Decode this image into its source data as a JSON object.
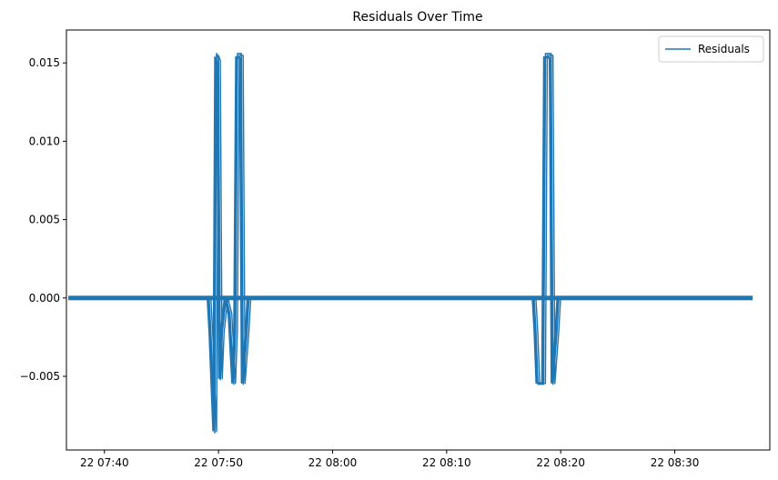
{
  "chart_data": {
    "type": "line",
    "title": "Residuals Over Time",
    "xlabel": "",
    "ylabel": "",
    "x_axis": {
      "kind": "time",
      "range": [
        "22 07:36:40",
        "22 08:38:20"
      ],
      "ticks": [
        "22 07:40",
        "22 07:50",
        "22 08:00",
        "22 08:10",
        "22 08:20",
        "22 08:30"
      ]
    },
    "y_axis": {
      "range": [
        -0.0097,
        0.0171
      ],
      "ticks": [
        "−0.005",
        "0.000",
        "0.005",
        "0.010",
        "0.015"
      ]
    },
    "grid": false,
    "legend": {
      "position": "top-right",
      "entries": [
        "Residuals"
      ]
    },
    "series": [
      {
        "name": "Residuals",
        "color": "#1f77b4",
        "time_range": [
          "22 07:36:50",
          "22 08:36:50"
        ],
        "baseline": 0.0,
        "points": [
          [
            "22 07:49:10",
            0.0
          ],
          [
            "22 07:49:20",
            -0.0023
          ],
          [
            "22 07:49:30",
            -0.0055
          ],
          [
            "22 07:49:40",
            -0.0086
          ],
          [
            "22 07:49:50",
            0.0156
          ],
          [
            "22 07:50:00",
            0.0153
          ],
          [
            "22 07:50:10",
            -0.0052
          ],
          [
            "22 07:50:20",
            -0.0022
          ],
          [
            "22 07:50:40",
            0.0
          ],
          [
            "22 07:51:00",
            -0.001
          ],
          [
            "22 07:51:20",
            -0.0055
          ],
          [
            "22 07:51:30",
            -0.0021
          ],
          [
            "22 07:51:40",
            0.0156
          ],
          [
            "22 07:52:00",
            0.0156
          ],
          [
            "22 07:52:10",
            -0.0055
          ],
          [
            "22 07:52:30",
            -0.0022
          ],
          [
            "22 07:52:40",
            0.0
          ],
          [
            "22 08:17:40",
            0.0
          ],
          [
            "22 08:17:50",
            -0.0022
          ],
          [
            "22 08:18:00",
            -0.0055
          ],
          [
            "22 08:18:30",
            -0.0055
          ],
          [
            "22 08:18:40",
            0.0156
          ],
          [
            "22 08:19:10",
            0.0156
          ],
          [
            "22 08:19:20",
            -0.0055
          ],
          [
            "22 08:19:40",
            -0.0022
          ],
          [
            "22 08:19:50",
            0.0
          ]
        ]
      }
    ]
  }
}
